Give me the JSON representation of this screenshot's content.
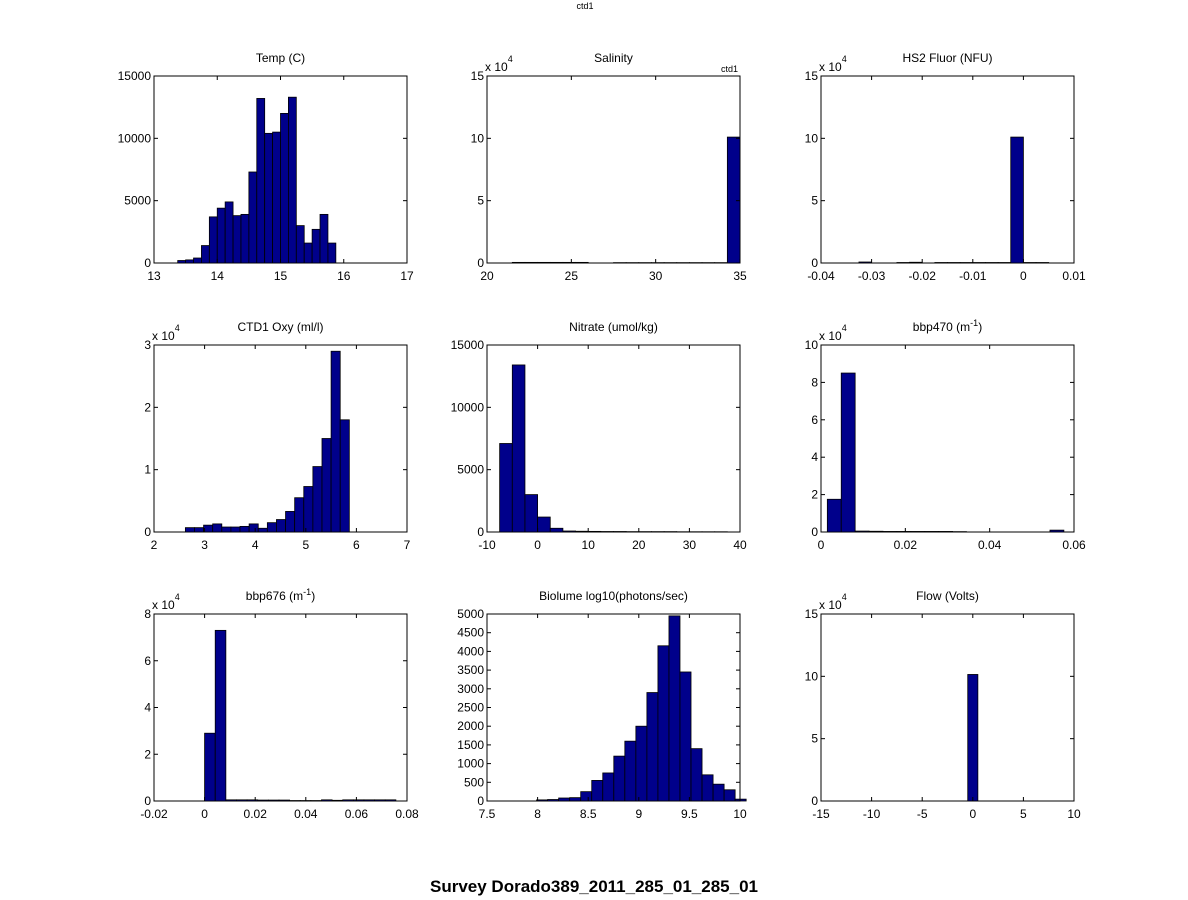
{
  "header_label": "ctd1",
  "footer_title": "Survey Dorado389_2011_285_01_285_01",
  "bar_color": "#00008b",
  "chart_data": [
    {
      "type": "bar",
      "title": "Temp (C)",
      "xlim": [
        13,
        17
      ],
      "xticks": [
        "13",
        "14",
        "15",
        "16",
        "17"
      ],
      "ylim": [
        0,
        15000
      ],
      "yticks": [
        "0",
        "5000",
        "10000",
        "15000"
      ],
      "exponent": "",
      "annotation": "",
      "bins": {
        "start": 13.375,
        "width": 0.125
      },
      "values": [
        200,
        250,
        400,
        1400,
        3700,
        4400,
        4900,
        3800,
        3900,
        7300,
        13200,
        10400,
        10500,
        12000,
        13300,
        3000,
        1600,
        2700,
        3900,
        1600
      ]
    },
    {
      "type": "bar",
      "title": "Salinity",
      "xlim": [
        20,
        35
      ],
      "xticks": [
        "20",
        "25",
        "30",
        "35"
      ],
      "ylim": [
        0,
        15
      ],
      "yticks": [
        "0",
        "5",
        "10",
        "15"
      ],
      "exponent": "4",
      "annotation": "ctd1",
      "bins": {
        "start": 21.5,
        "width": 0.75
      },
      "values": [
        0.05,
        0.05,
        0.05,
        0.05,
        0.05,
        0.05,
        0,
        0,
        0.03,
        0.03,
        0.03,
        0.03,
        0.03,
        0.03,
        0.03,
        0.03,
        0.03,
        10.1
      ]
    },
    {
      "type": "bar",
      "title": "HS2 Fluor (NFU)",
      "xlim": [
        -0.04,
        0.01
      ],
      "xticks": [
        "-0.04",
        "-0.03",
        "-0.02",
        "-0.01",
        "0",
        "0.01"
      ],
      "ylim": [
        0,
        15
      ],
      "yticks": [
        "0",
        "5",
        "10",
        "15"
      ],
      "exponent": "4",
      "annotation": "",
      "bins": {
        "start": -0.0375,
        "width": 0.0025
      },
      "values": [
        0,
        0,
        0.08,
        0,
        0,
        0.04,
        0.06,
        0,
        0.04,
        0.04,
        0.04,
        0.04,
        0.04,
        0.04,
        10.1,
        0.04,
        0.04,
        0
      ]
    },
    {
      "type": "bar",
      "title": "CTD1 Oxy (ml/l)",
      "xlim": [
        2,
        7
      ],
      "xticks": [
        "2",
        "3",
        "4",
        "5",
        "6",
        "7"
      ],
      "ylim": [
        0,
        3
      ],
      "yticks": [
        "0",
        "1",
        "2",
        "3"
      ],
      "exponent": "4",
      "annotation": "",
      "bins": {
        "start": 2.62,
        "width": 0.18
      },
      "values": [
        0.07,
        0.07,
        0.11,
        0.13,
        0.08,
        0.08,
        0.09,
        0.13,
        0.06,
        0.15,
        0.2,
        0.33,
        0.55,
        0.73,
        1.05,
        1.5,
        2.9,
        1.8
      ]
    },
    {
      "type": "bar",
      "title": "Nitrate (umol/kg)",
      "xlim": [
        -10,
        40
      ],
      "xticks": [
        "-10",
        "0",
        "10",
        "20",
        "30",
        "40"
      ],
      "ylim": [
        0,
        15000
      ],
      "yticks": [
        "0",
        "5000",
        "10000",
        "15000"
      ],
      "exponent": "",
      "annotation": "",
      "bins": {
        "start": -7.5,
        "width": 2.5
      },
      "values": [
        7100,
        13400,
        3000,
        1200,
        300,
        80,
        60,
        50,
        40,
        40,
        30,
        30,
        30,
        30,
        20,
        20,
        20,
        20
      ]
    },
    {
      "type": "bar",
      "title": "bbp470 (m",
      "title_sup": "-1",
      "title_end": ")",
      "xlim": [
        0,
        0.06
      ],
      "xticks": [
        "0",
        "0.02",
        "0.04",
        "0.06"
      ],
      "ylim": [
        0,
        10
      ],
      "yticks": [
        "0",
        "2",
        "4",
        "6",
        "8",
        "10"
      ],
      "exponent": "4",
      "annotation": "",
      "bins": {
        "start": 0.0015,
        "width": 0.0033
      },
      "values": [
        1.75,
        8.5,
        0.05,
        0.04,
        0.03,
        0.03,
        0.03,
        0.03,
        0.03,
        0.02,
        0,
        0,
        0,
        0,
        0,
        0,
        0.1
      ]
    },
    {
      "type": "bar",
      "title": "bbp676 (m",
      "title_sup": "-1",
      "title_end": ")",
      "xlim": [
        -0.02,
        0.08
      ],
      "xticks": [
        "-0.02",
        "0",
        "0.02",
        "0.04",
        "0.06",
        "0.08"
      ],
      "ylim": [
        0,
        8
      ],
      "yticks": [
        "0",
        "2",
        "4",
        "6",
        "8"
      ],
      "exponent": "4",
      "annotation": "",
      "bins": {
        "start": 0,
        "width": 0.0042
      },
      "values": [
        2.9,
        7.3,
        0.05,
        0.05,
        0.05,
        0.04,
        0.04,
        0.04,
        0.02,
        0.02,
        0.02,
        0.05,
        0.03,
        0.05,
        0.05,
        0.05,
        0.05,
        0.05
      ]
    },
    {
      "type": "bar",
      "title": "Biolume log10(photons/sec)",
      "xlim": [
        7.5,
        10
      ],
      "xticks": [
        "7.5",
        "8",
        "8.5",
        "9",
        "9.5",
        "10"
      ],
      "ylim": [
        0,
        5000
      ],
      "yticks": [
        "0",
        "500",
        "1000",
        "1500",
        "2000",
        "2500",
        "3000",
        "3500",
        "4000",
        "4500",
        "5000"
      ],
      "exponent": "",
      "annotation": "",
      "bins": {
        "start": 7.99,
        "width": 0.109
      },
      "values": [
        30,
        40,
        80,
        90,
        250,
        550,
        750,
        1200,
        1600,
        2000,
        2900,
        4150,
        4950,
        3450,
        1400,
        700,
        450,
        300,
        50
      ]
    },
    {
      "type": "bar",
      "title": "Flow (Volts)",
      "xlim": [
        -15,
        10
      ],
      "xticks": [
        "-15",
        "-10",
        "-5",
        "0",
        "5",
        "10"
      ],
      "ylim": [
        0,
        15
      ],
      "yticks": [
        "0",
        "5",
        "10",
        "15"
      ],
      "exponent": "4",
      "annotation": "",
      "bins": {
        "start": -0.5,
        "width": 1.0
      },
      "values": [
        10.15
      ]
    }
  ]
}
